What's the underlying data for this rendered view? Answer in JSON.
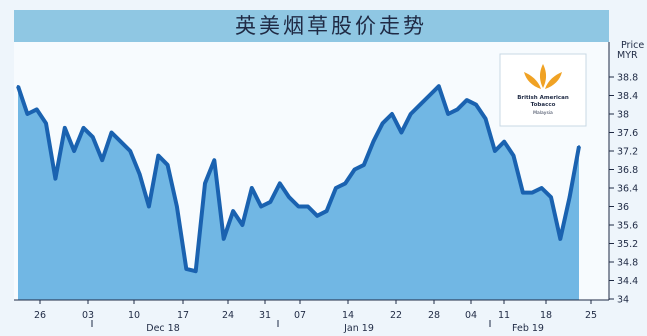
{
  "chart_data": {
    "type": "area",
    "title": "英美烟草股价走势",
    "ylabel": "Price\nMYR",
    "ylim": [
      34,
      39
    ],
    "yticks": [
      34,
      34.4,
      34.8,
      35.2,
      35.6,
      36,
      36.4,
      36.8,
      37.2,
      37.6,
      38,
      38.4,
      38.8
    ],
    "x_day_labels": [
      "26",
      "03",
      "10",
      "17",
      "24",
      "31",
      "07",
      "14",
      "22",
      "28",
      "04",
      "11",
      "18",
      "25"
    ],
    "x_month_labels": [
      "Dec 18",
      "Jan 19",
      "Feb 19"
    ],
    "series": [
      {
        "values": [
          38.6,
          38,
          38.1,
          37.8,
          36.6,
          37.7,
          37.2,
          37.7,
          37.5,
          37,
          37.6,
          37.4,
          37.2,
          36.7,
          36,
          37.1,
          36.9,
          36,
          34.65,
          34.6,
          36.5,
          37,
          35.3,
          35.9,
          35.6,
          36.4,
          36,
          36.1,
          36.5,
          36.2,
          36,
          36,
          35.8,
          35.9,
          36.4,
          36.5,
          36.8,
          36.9,
          37.4,
          37.8,
          38,
          37.6,
          38,
          38.2,
          38.4,
          38.6,
          38,
          38.1,
          38.3,
          38.2,
          37.9,
          37.2,
          37.4,
          37.1,
          36.3,
          36.3,
          36.4,
          36.2,
          35.3,
          36.2,
          37.3
        ]
      }
    ],
    "legend": "none",
    "grid": false
  },
  "logo": {
    "line1": "British American",
    "line2": "Tobacco",
    "line3": "Malaysia"
  },
  "colors": {
    "background": "#eef5fb",
    "title_band": "#8fc7e3",
    "area_fill": "#71b7e4",
    "line": "#1a62b0",
    "logo_gold": "#f0a224",
    "text": "#1f2a44"
  }
}
